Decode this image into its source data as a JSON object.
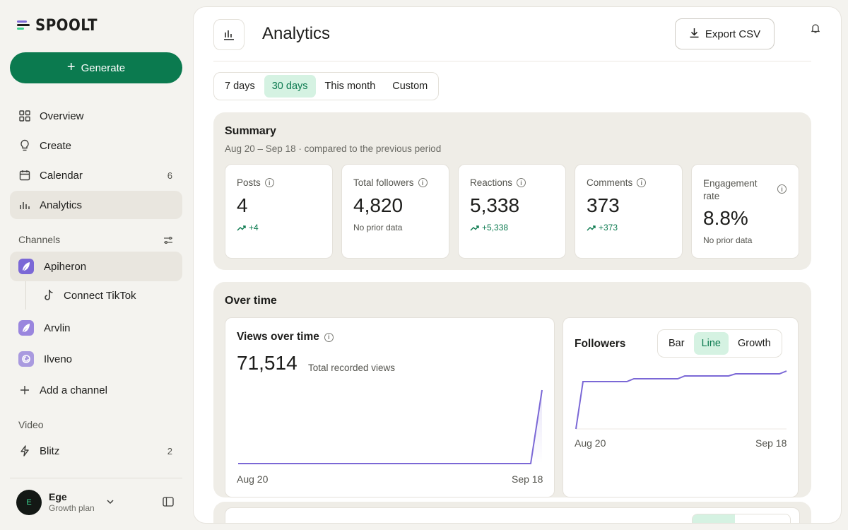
{
  "brand": {
    "name": "SPOOLT"
  },
  "sidebar": {
    "generate_label": "Generate",
    "nav": [
      {
        "label": "Overview",
        "icon": "grid-icon",
        "count": ""
      },
      {
        "label": "Create",
        "icon": "lightbulb-icon",
        "count": ""
      },
      {
        "label": "Calendar",
        "icon": "calendar-icon",
        "count": "6"
      },
      {
        "label": "Analytics",
        "icon": "bar-chart-icon",
        "count": ""
      }
    ],
    "channels_label": "Channels",
    "channels": [
      {
        "label": "Apiheron"
      },
      {
        "label": "Connect TikTok"
      },
      {
        "label": "Arvlin"
      },
      {
        "label": "Ilveno"
      }
    ],
    "add_channel_label": "Add a channel",
    "video_label": "Video",
    "video_items": [
      {
        "label": "Blitz",
        "count": "2"
      }
    ],
    "user": {
      "initial": "E",
      "name": "Ege",
      "plan": "Growth plan"
    }
  },
  "header": {
    "title": "Analytics",
    "export_label": "Export CSV"
  },
  "range_tabs": [
    {
      "label": "7 days",
      "selected": false
    },
    {
      "label": "30 days",
      "selected": true
    },
    {
      "label": "This month",
      "selected": false
    },
    {
      "label": "Custom",
      "selected": false
    }
  ],
  "summary": {
    "title": "Summary",
    "subtitle": "Aug 20 – Sep 18 · compared to the previous period",
    "stats": [
      {
        "label": "Posts",
        "value": "4",
        "delta": "+4"
      },
      {
        "label": "Total followers",
        "value": "4,820",
        "delta": "No prior data"
      },
      {
        "label": "Reactions",
        "value": "5,338",
        "delta": "+5,338"
      },
      {
        "label": "Comments",
        "value": "373",
        "delta": "+373"
      },
      {
        "label": "Engagement rate",
        "value": "8.8%",
        "delta": "No prior data"
      }
    ]
  },
  "over_time": {
    "title": "Over time",
    "views": {
      "title": "Views over time",
      "total": "71,514",
      "total_label": "Total recorded views",
      "x_start": "Aug 20",
      "x_end": "Sep 18"
    },
    "followers": {
      "title": "Followers",
      "tabs": [
        {
          "label": "Bar",
          "selected": false
        },
        {
          "label": "Line",
          "selected": true
        },
        {
          "label": "Growth",
          "selected": false
        }
      ],
      "x_start": "Aug 20",
      "x_end": "Sep 18"
    }
  },
  "colors": {
    "accent": "#0b7a4f",
    "accent_soft": "#d5f2e2",
    "line": "#7b68d6"
  }
}
